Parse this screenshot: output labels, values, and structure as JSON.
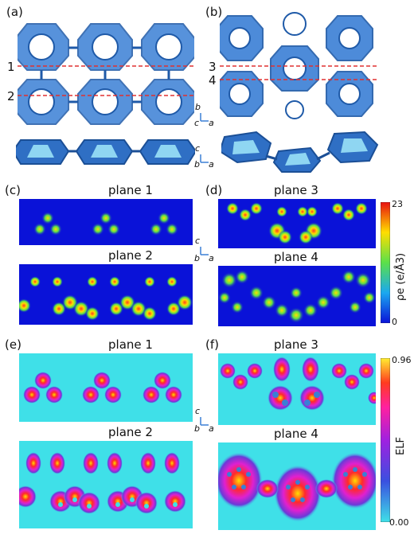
{
  "panels": {
    "a": "(a)",
    "b": "(b)",
    "c": "(c)",
    "d": "(d)",
    "e": "(e)",
    "f": "(f)"
  },
  "plane_markers": {
    "p1": "1",
    "p2": "2",
    "p3": "3",
    "p4": "4"
  },
  "titles": {
    "c_top": "plane 1",
    "c_bot": "plane 2",
    "d_top": "plane 3",
    "d_bot": "plane 4",
    "e_top": "plane 1",
    "e_bot": "plane 2",
    "f_top": "plane 3",
    "f_bot": "plane 4"
  },
  "axes": {
    "top": {
      "up": "b",
      "out": "c",
      "right": "a"
    },
    "mid": {
      "up": "c",
      "out": "b",
      "right": "a"
    },
    "cd": {
      "up": "c",
      "out": "b",
      "right": "a"
    },
    "ef": {
      "up": "c",
      "out": "b",
      "right": "a"
    }
  },
  "colorbar_density": {
    "max": "23",
    "min": "0",
    "label": "ρe (e/Å3)"
  },
  "colorbar_elf": {
    "max": "0.96",
    "min": "0.00",
    "label": "ELF"
  },
  "colors": {
    "structure": "#3a7fd5",
    "dash": "#e03030",
    "density_bg": "#0a12d8",
    "elf_bg": "#3fe0e8"
  }
}
